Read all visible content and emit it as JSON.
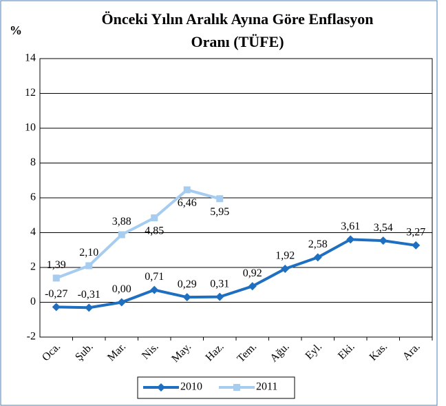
{
  "chart_data": {
    "type": "line",
    "title": "Önceki Yılın Aralık Ayına Göre Enflasyon Oranı (TÜFE)",
    "title_lines": [
      "Önceki Yılın Aralık Ayına Göre Enflasyon",
      "Oranı (TÜFE)"
    ],
    "y_label": "%",
    "categories": [
      "Oca.",
      "Şub.",
      "Mar.",
      "Nis.",
      "May.",
      "Haz.",
      "Tem.",
      "Ağu.",
      "Eyl.",
      "Eki.",
      "Kas.",
      "Ara."
    ],
    "series": [
      {
        "name": "2010",
        "color": "#1f6fc0",
        "marker": "diamond",
        "values": [
          -0.27,
          -0.31,
          0.0,
          0.71,
          0.29,
          0.31,
          0.92,
          1.92,
          2.58,
          3.61,
          3.54,
          3.27
        ],
        "value_labels": [
          "-0,27",
          "-0,31",
          "0,00",
          "0,71",
          "0,29",
          "0,31",
          "0,92",
          "1,92",
          "2,58",
          "3,61",
          "3,54",
          "3,27"
        ]
      },
      {
        "name": "2011",
        "color": "#a6ccf0",
        "marker": "square",
        "values": [
          1.39,
          2.1,
          3.88,
          4.85,
          6.46,
          5.95,
          null,
          null,
          null,
          null,
          null,
          null
        ],
        "value_labels": [
          "1,39",
          "2,10",
          "3,88",
          "4,85",
          "6,46",
          "5,95",
          null,
          null,
          null,
          null,
          null,
          null
        ]
      }
    ],
    "ylim": [
      -2,
      14
    ],
    "yticks": [
      -2,
      0,
      2,
      4,
      6,
      8,
      10,
      12,
      14
    ],
    "grid": true,
    "legend": "bottom"
  }
}
